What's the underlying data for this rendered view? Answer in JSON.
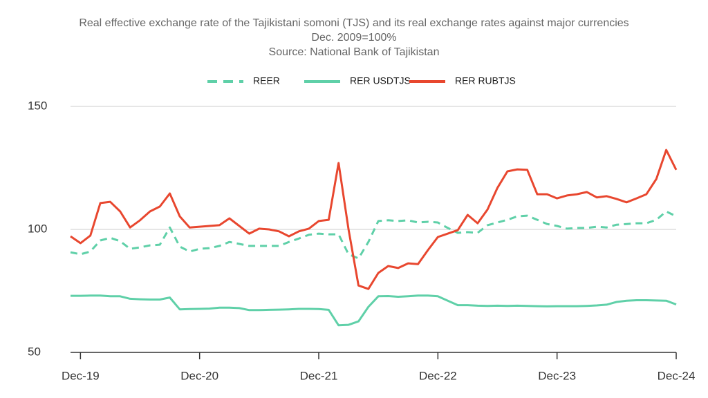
{
  "chart_data": {
    "type": "line",
    "title": "Real effective exchange rate of the Tajikistani somoni (TJS) and its real exchange rates against major currencies",
    "subtitle": "Dec. 2009=100%",
    "source": "Source: National Bank of Tajikistan",
    "categories": [
      null,
      "Dec-19",
      null,
      null,
      null,
      null,
      null,
      null,
      null,
      null,
      null,
      null,
      null,
      "Dec-20",
      null,
      null,
      null,
      null,
      null,
      null,
      null,
      null,
      null,
      null,
      null,
      "Dec-21",
      null,
      null,
      null,
      null,
      null,
      null,
      null,
      null,
      null,
      null,
      null,
      "Dec-22",
      null,
      null,
      null,
      null,
      null,
      null,
      null,
      null,
      null,
      null,
      null,
      "Dec-23",
      null,
      null,
      null,
      null,
      null,
      null,
      null,
      null,
      null,
      null,
      null,
      "Dec-24"
    ],
    "ylim": [
      50,
      150
    ],
    "yticks": [
      50,
      100,
      150
    ],
    "grid": true,
    "series": [
      {
        "name": "REER",
        "color": "#5fd0a8",
        "dashed": true,
        "values": [
          90.7,
          89.9,
          91,
          95.5,
          96.6,
          95.2,
          92.1,
          92.7,
          93.5,
          93.8,
          100.8,
          93,
          91,
          92.1,
          92.4,
          93.3,
          94.9,
          94.1,
          93.3,
          93.3,
          93.3,
          93.3,
          94.9,
          96.3,
          97.8,
          98.3,
          98,
          98,
          89.9,
          88.2,
          94.9,
          103.4,
          103.7,
          103.4,
          103.7,
          102.8,
          103.1,
          102.8,
          100.6,
          98.6,
          98.9,
          98.6,
          101.7,
          102.8,
          103.9,
          105.3,
          105.6,
          103.9,
          102.2,
          101.4,
          100.3,
          100.6,
          100.6,
          101.1,
          100.8,
          101.9,
          102.2,
          102.5,
          102.5,
          103.9,
          107.3,
          105.3
        ]
      },
      {
        "name": "RER USDTJS",
        "color": "#5fd0a8",
        "dashed": false,
        "values": [
          73,
          73,
          73.1,
          73.1,
          72.8,
          72.8,
          71.8,
          71.6,
          71.5,
          71.5,
          72.3,
          67.5,
          67.6,
          67.7,
          67.8,
          68.2,
          68.2,
          68,
          67.2,
          67.2,
          67.3,
          67.4,
          67.5,
          67.7,
          67.7,
          67.6,
          67.3,
          61,
          61.2,
          62.6,
          68.5,
          72.8,
          72.9,
          72.6,
          72.8,
          73.1,
          73.1,
          72.8,
          71,
          69.2,
          69.2,
          69,
          68.9,
          69,
          68.9,
          69,
          68.9,
          68.8,
          68.7,
          68.8,
          68.8,
          68.8,
          68.9,
          69.1,
          69.4,
          70.5,
          71,
          71.2,
          71.2,
          71.1,
          71,
          69.5
        ]
      },
      {
        "name": "RER RUBTJS",
        "color": "#e8472f",
        "dashed": false,
        "values": [
          97.2,
          94.4,
          97.5,
          110.7,
          111.2,
          107.3,
          100.8,
          103.7,
          107.3,
          109.3,
          114.6,
          105.3,
          100.8,
          101.1,
          101.4,
          101.7,
          104.5,
          101.4,
          98.3,
          100.3,
          100,
          99.2,
          97.2,
          99.2,
          100.3,
          103.4,
          103.9,
          127,
          100,
          77.2,
          75.8,
          82.3,
          85.1,
          84.3,
          86.2,
          85.9,
          91.6,
          96.9,
          98.3,
          99.7,
          105.9,
          102.5,
          108.1,
          116.9,
          123.6,
          124.4,
          124.2,
          114.3,
          114.3,
          112.6,
          113.8,
          114.3,
          115.2,
          113,
          113.5,
          112.4,
          111,
          112.6,
          114.3,
          120.5,
          132.3,
          124.2
        ]
      }
    ]
  }
}
